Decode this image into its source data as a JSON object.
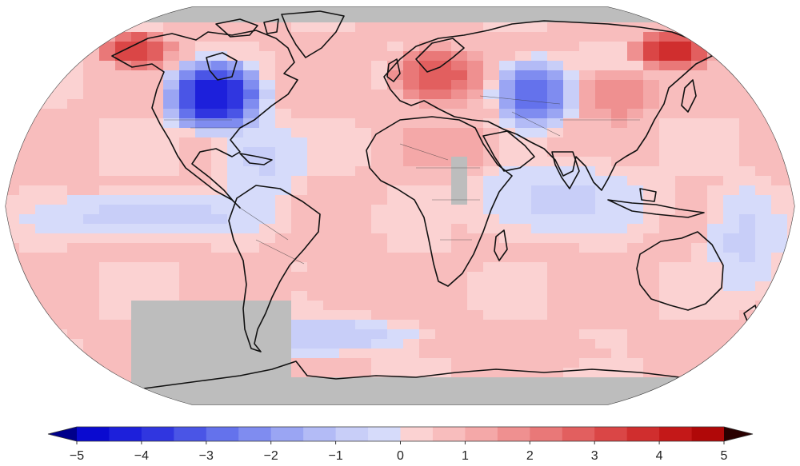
{
  "map": {
    "projection": "Robinson",
    "background": "#ffffff",
    "missing_color": "#bdbdbd",
    "coastline_color": "#111111",
    "base_anomaly_field": "weak warm anomalies over most oceans, cool anomalies in tropical/southern Pacific and southern Atlantic; grey = no data"
  },
  "colorbar": {
    "min": -5,
    "max": 5,
    "step": 0.5,
    "ticks": [
      "−5",
      "−4",
      "−3",
      "−2",
      "−1",
      "0",
      "1",
      "2",
      "3",
      "4",
      "5"
    ],
    "tick_values": [
      -5,
      -4,
      -3,
      -2,
      -1,
      0,
      1,
      2,
      3,
      4,
      5
    ],
    "colors": [
      "#0a0ad0",
      "#1d20db",
      "#3036e0",
      "#4a55e6",
      "#6472ec",
      "#7f8cf0",
      "#9aa5f3",
      "#b3bbf6",
      "#c8cef8",
      "#d6dbfa",
      "#fbd2d2",
      "#f8bdbd",
      "#f4a8a8",
      "#ef9090",
      "#e97878",
      "#e25f5f",
      "#da4646",
      "#d02e2e",
      "#c41818",
      "#b00808"
    ],
    "end_low_color": "#00008a",
    "end_high_color": "#2a0000"
  },
  "regions": [
    {
      "name": "eastern-north-america",
      "anomaly": -4.5
    },
    {
      "name": "alaska-yukon",
      "anomaly": 3.5
    },
    {
      "name": "europe",
      "anomaly": 3.0
    },
    {
      "name": "central-asia",
      "anomaly": -3.0
    },
    {
      "name": "eastern-siberia",
      "anomaly": 4.0
    },
    {
      "name": "mongolia-china",
      "anomaly": 2.0
    },
    {
      "name": "north-africa",
      "anomaly": 1.5
    },
    {
      "name": "australia",
      "anomaly": 0.5
    },
    {
      "name": "south-atlantic",
      "anomaly": 1.0
    },
    {
      "name": "southern-ocean-cool",
      "anomaly": -1.0
    }
  ]
}
